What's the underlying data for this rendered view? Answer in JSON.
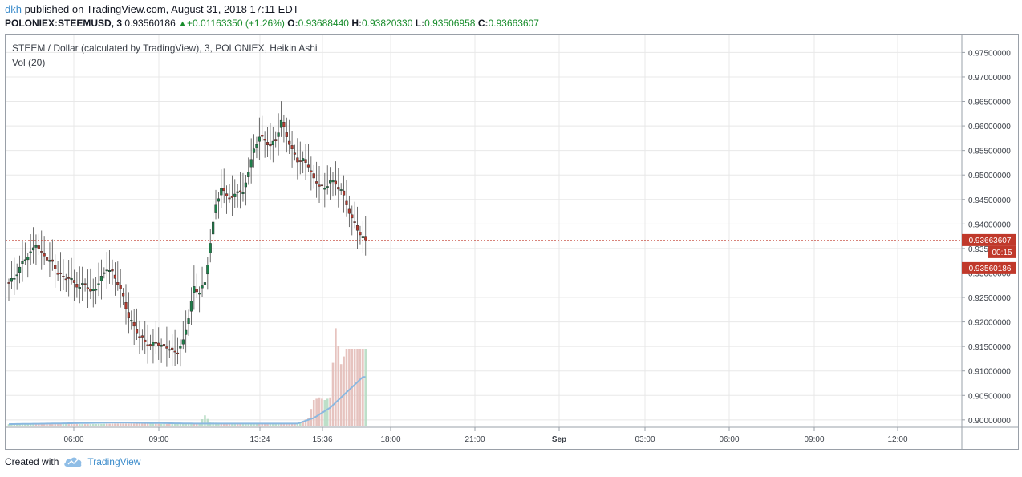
{
  "header": {
    "user": "dkh",
    "published_text": " published on TradingView.com, August 31, 2018 17:11 EDT",
    "symbol": "POLONIEX:STEEMUSD, 3",
    "price": "0.93560186",
    "change": "+0.01163350 (+1.26%)",
    "o_label": "O:",
    "o_value": "0.93688440",
    "h_label": "H:",
    "h_value": "0.93820330",
    "l_label": "L:",
    "l_value": "0.93506958",
    "c_label": "C:",
    "c_value": "0.93663607"
  },
  "legend": {
    "title": "STEEM / Dollar (calculated by TradingView), 3, POLONIEX, Heikin Ashi",
    "volume": "Vol (20)"
  },
  "footer": {
    "created_with": "Created with",
    "brand": "TradingView"
  },
  "colors": {
    "up": "#1e7e4a",
    "down": "#b23a2e",
    "grid": "#e8e8e8",
    "price_line": "#c0392b",
    "vol_ma": "#8ab8e0",
    "brand": "#3c8ccb"
  },
  "chart_data": {
    "type": "candlestick",
    "style": "Heikin Ashi",
    "price_axis": [
      "0.97500000",
      "0.97000000",
      "0.96500000",
      "0.96000000",
      "0.95500000",
      "0.95000000",
      "0.94500000",
      "0.94000000",
      "0.93500000",
      "0.93000000",
      "0.92500000",
      "0.92000000",
      "0.91500000",
      "0.91000000",
      "0.90500000",
      "0.90000000"
    ],
    "time_axis": [
      "06:00",
      "09:00",
      "13:24",
      "15:36",
      "18:00",
      "21:00",
      "Sep",
      "03:00",
      "06:00",
      "09:00",
      "12:00"
    ],
    "ylim": [
      0.8985,
      0.9785
    ],
    "last_price_label": "0.93663607",
    "countdown_label": "00:15",
    "second_price_label": "0.93560186",
    "last_price": 0.93663607,
    "close_path": [
      [
        0,
        0.928
      ],
      [
        2,
        0.929
      ],
      [
        4,
        0.931
      ],
      [
        6,
        0.933
      ],
      [
        8,
        0.934
      ],
      [
        10,
        0.936
      ],
      [
        12,
        0.934
      ],
      [
        14,
        0.933
      ],
      [
        16,
        0.932
      ],
      [
        18,
        0.93
      ],
      [
        20,
        0.929
      ],
      [
        22,
        0.929
      ],
      [
        24,
        0.928
      ],
      [
        26,
        0.927
      ],
      [
        28,
        0.928
      ],
      [
        30,
        0.926
      ],
      [
        32,
        0.927
      ],
      [
        34,
        0.929
      ],
      [
        36,
        0.931
      ],
      [
        38,
        0.93
      ],
      [
        40,
        0.928
      ],
      [
        42,
        0.925
      ],
      [
        44,
        0.921
      ],
      [
        46,
        0.919
      ],
      [
        48,
        0.917
      ],
      [
        50,
        0.916
      ],
      [
        52,
        0.915
      ],
      [
        54,
        0.916
      ],
      [
        56,
        0.915
      ],
      [
        58,
        0.915
      ],
      [
        60,
        0.914
      ],
      [
        62,
        0.914
      ],
      [
        64,
        0.916
      ],
      [
        66,
        0.921
      ],
      [
        68,
        0.927
      ],
      [
        70,
        0.926
      ],
      [
        72,
        0.928
      ],
      [
        74,
        0.936
      ],
      [
        76,
        0.944
      ],
      [
        78,
        0.947
      ],
      [
        80,
        0.946
      ],
      [
        82,
        0.945
      ],
      [
        84,
        0.947
      ],
      [
        86,
        0.946
      ],
      [
        88,
        0.951
      ],
      [
        90,
        0.955
      ],
      [
        92,
        0.958
      ],
      [
        94,
        0.957
      ],
      [
        96,
        0.956
      ],
      [
        98,
        0.957
      ],
      [
        100,
        0.961
      ],
      [
        102,
        0.958
      ],
      [
        104,
        0.955
      ],
      [
        106,
        0.953
      ],
      [
        108,
        0.953
      ],
      [
        110,
        0.952
      ],
      [
        112,
        0.949
      ],
      [
        114,
        0.948
      ],
      [
        116,
        0.947
      ],
      [
        118,
        0.949
      ],
      [
        120,
        0.948
      ],
      [
        122,
        0.947
      ],
      [
        124,
        0.944
      ],
      [
        126,
        0.941
      ],
      [
        128,
        0.939
      ],
      [
        130,
        0.937
      ],
      [
        131,
        0.9366
      ]
    ],
    "volume": [
      [
        0,
        0.3
      ],
      [
        10,
        0.3
      ],
      [
        20,
        0.3
      ],
      [
        30,
        0.3
      ],
      [
        40,
        0.4
      ],
      [
        50,
        0.4
      ],
      [
        60,
        0.3
      ],
      [
        70,
        0.5
      ],
      [
        72,
        2.0
      ],
      [
        74,
        0.6
      ],
      [
        80,
        0.5
      ],
      [
        90,
        0.4
      ],
      [
        100,
        0.4
      ],
      [
        106,
        0.3
      ],
      [
        110,
        1.5
      ],
      [
        112,
        5.0
      ],
      [
        114,
        5.5
      ],
      [
        116,
        5.0
      ],
      [
        118,
        5.5
      ],
      [
        120,
        19.0
      ],
      [
        122,
        12.0
      ],
      [
        124,
        15.0
      ],
      [
        126,
        15.0
      ],
      [
        128,
        15.0
      ],
      [
        130,
        15.0
      ]
    ],
    "volume_ma": [
      [
        0,
        0.3
      ],
      [
        40,
        0.6
      ],
      [
        70,
        0.4
      ],
      [
        106,
        0.4
      ],
      [
        112,
        1.5
      ],
      [
        118,
        3.5
      ],
      [
        124,
        6.5
      ],
      [
        130,
        9.5
      ]
    ]
  }
}
